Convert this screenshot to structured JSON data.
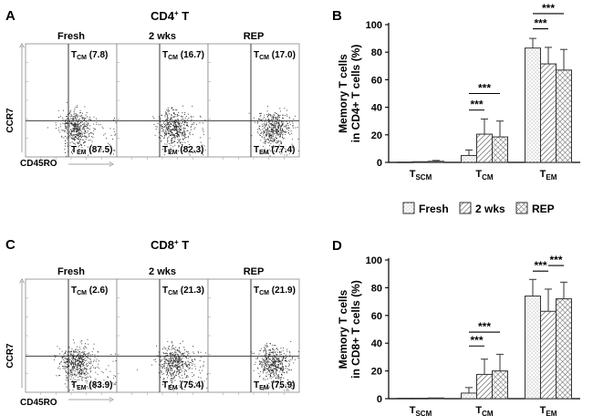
{
  "legend": {
    "items": [
      "Fresh",
      "2 wks",
      "REP"
    ]
  },
  "flow_panels": [
    {
      "letter": "A",
      "title": "CD4",
      "title_sup": "+",
      "title_suffix": " T",
      "y_axis": "CCR7",
      "x_axis": "CD45RO",
      "plots": [
        {
          "name": "Fresh",
          "tcm": "(7.8)",
          "tem": "(87.5)"
        },
        {
          "name": "2 wks",
          "tcm": "(16.7)",
          "tem": "(82.3)"
        },
        {
          "name": "REP",
          "tcm": "(17.0)",
          "tem": "(77.4)"
        }
      ]
    },
    {
      "letter": "C",
      "title": "CD8",
      "title_sup": "+",
      "title_suffix": " T",
      "y_axis": "CCR7",
      "x_axis": "CD45RO",
      "plots": [
        {
          "name": "Fresh",
          "tcm": "(2.6)",
          "tem": "(83.9)"
        },
        {
          "name": "2 wks",
          "tcm": "(21.3)",
          "tem": "(75.4)"
        },
        {
          "name": "REP",
          "tcm": "(21.9)",
          "tem": "(75.9)"
        }
      ]
    }
  ],
  "chart_data": [
    {
      "panel": "B",
      "type": "bar",
      "ylabel": [
        "Memory T cells",
        "in CD4+ T cells (%)"
      ],
      "ylim": [
        0,
        100
      ],
      "yticks": [
        0,
        20,
        40,
        60,
        80,
        100
      ],
      "categories": [
        {
          "main": "T",
          "sub": "SCM"
        },
        {
          "main": "T",
          "sub": "CM"
        },
        {
          "main": "T",
          "sub": "EM"
        }
      ],
      "series": [
        {
          "name": "Fresh",
          "values": [
            0.2,
            5,
            83
          ],
          "errors": [
            0.2,
            4,
            7
          ]
        },
        {
          "name": "2 wks",
          "values": [
            0.5,
            20.5,
            71.5
          ],
          "errors": [
            0.5,
            11,
            12
          ]
        },
        {
          "name": "REP",
          "values": [
            0.8,
            18.5,
            67
          ],
          "errors": [
            0.6,
            11.5,
            15
          ]
        }
      ],
      "significance": [
        {
          "category": 1,
          "from": 0,
          "to": 1,
          "label": "***",
          "level": 38
        },
        {
          "category": 1,
          "from": 0,
          "to": 2,
          "label": "***",
          "level": 50
        },
        {
          "category": 2,
          "from": 0,
          "to": 1,
          "label": "***",
          "level": 97
        },
        {
          "category": 2,
          "from": 0,
          "to": 2,
          "label": "***",
          "level": 108
        }
      ]
    },
    {
      "panel": "D",
      "type": "bar",
      "ylabel": [
        "Memory T cells",
        "in CD8+ T cells (%)"
      ],
      "ylim": [
        0,
        100
      ],
      "yticks": [
        0,
        20,
        40,
        60,
        80,
        100
      ],
      "categories": [
        {
          "main": "T",
          "sub": "SCM"
        },
        {
          "main": "T",
          "sub": "CM"
        },
        {
          "main": "T",
          "sub": "EM"
        }
      ],
      "series": [
        {
          "name": "Fresh",
          "values": [
            0.3,
            4,
            74
          ],
          "errors": [
            0.2,
            4,
            12
          ]
        },
        {
          "name": "2 wks",
          "values": [
            0.3,
            17.5,
            63
          ],
          "errors": [
            0.3,
            11,
            16
          ]
        },
        {
          "name": "REP",
          "values": [
            0.5,
            20,
            72
          ],
          "errors": [
            0.4,
            12,
            12
          ]
        }
      ],
      "significance": [
        {
          "category": 1,
          "from": 0,
          "to": 1,
          "label": "***",
          "level": 38
        },
        {
          "category": 1,
          "from": 0,
          "to": 2,
          "label": "***",
          "level": 48
        },
        {
          "category": 2,
          "from": 0,
          "to": 1,
          "label": "***",
          "level": 92
        },
        {
          "category": 2,
          "from": 1,
          "to": 2,
          "label": "***",
          "level": 96
        }
      ]
    }
  ]
}
